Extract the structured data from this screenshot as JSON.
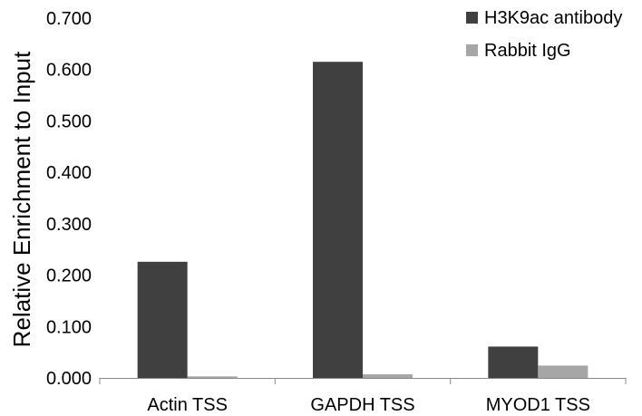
{
  "chart_data": {
    "type": "bar",
    "title": "",
    "xlabel": "",
    "ylabel": "Relative Enrichment to Input",
    "categories": [
      "Actin TSS",
      "GAPDH TSS",
      "MYOD1 TSS"
    ],
    "series": [
      {
        "name": "H3K9ac antibody",
        "values": [
          0.226,
          0.615,
          0.061
        ],
        "color": "#404040"
      },
      {
        "name": "Rabbit IgG",
        "values": [
          0.003,
          0.007,
          0.024
        ],
        "color": "#a6a6a6"
      }
    ],
    "ylim": [
      0,
      0.7
    ],
    "yticks": [
      "0.000",
      "0.100",
      "0.200",
      "0.300",
      "0.400",
      "0.500",
      "0.600",
      "0.700"
    ],
    "grid": false,
    "legend_position": "top-right"
  }
}
